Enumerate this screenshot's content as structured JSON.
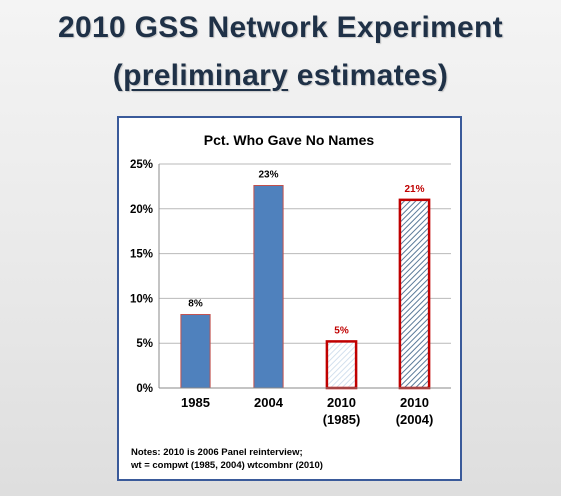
{
  "slide": {
    "title_line1": "2010 GSS Network Experiment",
    "title_line2_open": "(",
    "title_line2_underlined": "preliminary",
    "title_line2_rest": " estimates)"
  },
  "chart_data": {
    "type": "bar",
    "title": "Pct. Who Gave No Names",
    "categories": [
      [
        "1985"
      ],
      [
        "2004"
      ],
      [
        "2010",
        "(1985)"
      ],
      [
        "2010",
        "(2004)"
      ]
    ],
    "values": [
      8.2,
      22.6,
      5.2,
      21.0
    ],
    "data_labels": [
      "8%",
      "23%",
      "5%",
      "21%"
    ],
    "ylim": [
      0,
      25
    ],
    "yticks": [
      0,
      5,
      10,
      15,
      20,
      25
    ],
    "ytick_labels": [
      "0%",
      "5%",
      "10%",
      "15%",
      "20%",
      "25%"
    ],
    "grid": true,
    "bar_styles": [
      "solid",
      "solid",
      "light-hatch",
      "dark-hatch"
    ],
    "colors": {
      "solid_fill": "#4f81bd",
      "solid_edge": "#c0504d",
      "outline_edge": "#c00000",
      "light_hatch": "#c9d9ea",
      "dark_hatch": "#5b7a99",
      "label_red": "#c00000",
      "label_black": "#000000"
    },
    "notes": [
      "Notes: 2010 is 2006 Panel reinterview;",
      "wt = compwt (1985, 2004)  wtcombnr (2010)"
    ]
  }
}
